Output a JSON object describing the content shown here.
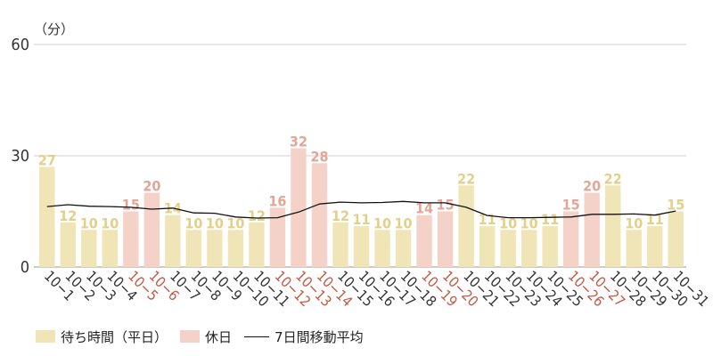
{
  "chart_data": {
    "type": "bar",
    "unit_label": "（分）",
    "ylim": [
      0,
      60
    ],
    "yticks": [
      0,
      30,
      60
    ],
    "grid": true,
    "legend_position": "bottom-left",
    "categories": [
      "10−1",
      "10−2",
      "10−3",
      "10−4",
      "10−5",
      "10−6",
      "10−7",
      "10−8",
      "10−9",
      "10−10",
      "10−11",
      "10−12",
      "10−13",
      "10−14",
      "10−15",
      "10−16",
      "10−17",
      "10−18",
      "10−19",
      "10−20",
      "10−21",
      "10−22",
      "10−23",
      "10−24",
      "10−25",
      "10−26",
      "10−27",
      "10−28",
      "10−29",
      "10−30",
      "10−31"
    ],
    "values": [
      27,
      12,
      10,
      10,
      15,
      20,
      14,
      10,
      10,
      10,
      12,
      16,
      32,
      28,
      12,
      11,
      10,
      10,
      14,
      15,
      22,
      11,
      10,
      10,
      11,
      15,
      20,
      22,
      10,
      11,
      15
    ],
    "day_type": [
      "weekday",
      "weekday",
      "weekday",
      "weekday",
      "holiday",
      "holiday",
      "weekday",
      "weekday",
      "weekday",
      "weekday",
      "weekday",
      "holiday",
      "holiday",
      "holiday",
      "weekday",
      "weekday",
      "weekday",
      "weekday",
      "holiday",
      "holiday",
      "weekday",
      "weekday",
      "weekday",
      "weekday",
      "weekday",
      "holiday",
      "holiday",
      "weekday",
      "weekday",
      "weekday",
      "weekday"
    ],
    "series": [
      {
        "name": "待ち時間（平日）",
        "type": "bar",
        "day_type": "weekday",
        "color": "#f0e5b6",
        "label_color": "#e2d088"
      },
      {
        "name": "休日",
        "type": "bar",
        "day_type": "holiday",
        "color": "#f5d2c8",
        "label_color": "#e3a596"
      },
      {
        "name": "7日間移動平均",
        "type": "line",
        "color": "#111111",
        "values": [
          16.3,
          16.8,
          16.4,
          16.3,
          16.1,
          15.6,
          15.9,
          14.6,
          14.5,
          13.5,
          13.2,
          13.3,
          14.8,
          17.0,
          17.5,
          17.3,
          17.4,
          17.7,
          17.3,
          17.3,
          16.1,
          13.9,
          13.3,
          13.3,
          13.4,
          13.5,
          14.2,
          14.2,
          14.3,
          14.0,
          15.1
        ]
      }
    ],
    "holiday_tick_color": "#c05a45",
    "weekday_tick_color": "#333333"
  }
}
